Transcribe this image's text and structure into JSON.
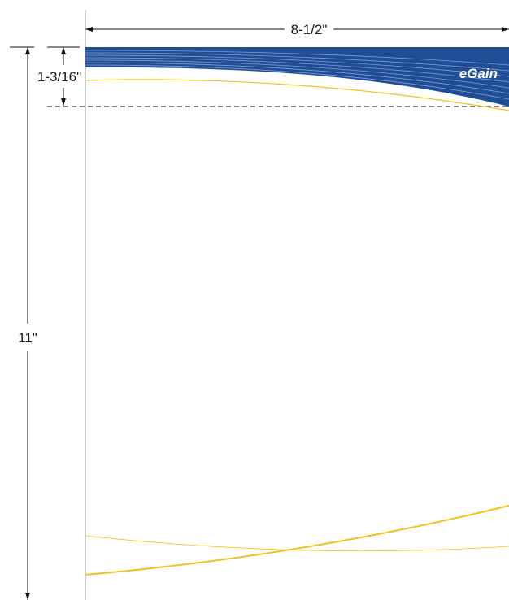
{
  "dimensions": {
    "width_label": "8-1/2\"",
    "height_label": "11\"",
    "header_label": "1-3/16\""
  },
  "brand": {
    "logo_text": "eGain",
    "band_color": "#1f4e96",
    "accent_color": "#f2c21b",
    "line_color": "#111111",
    "page_edge_color": "#9a9a9a"
  }
}
